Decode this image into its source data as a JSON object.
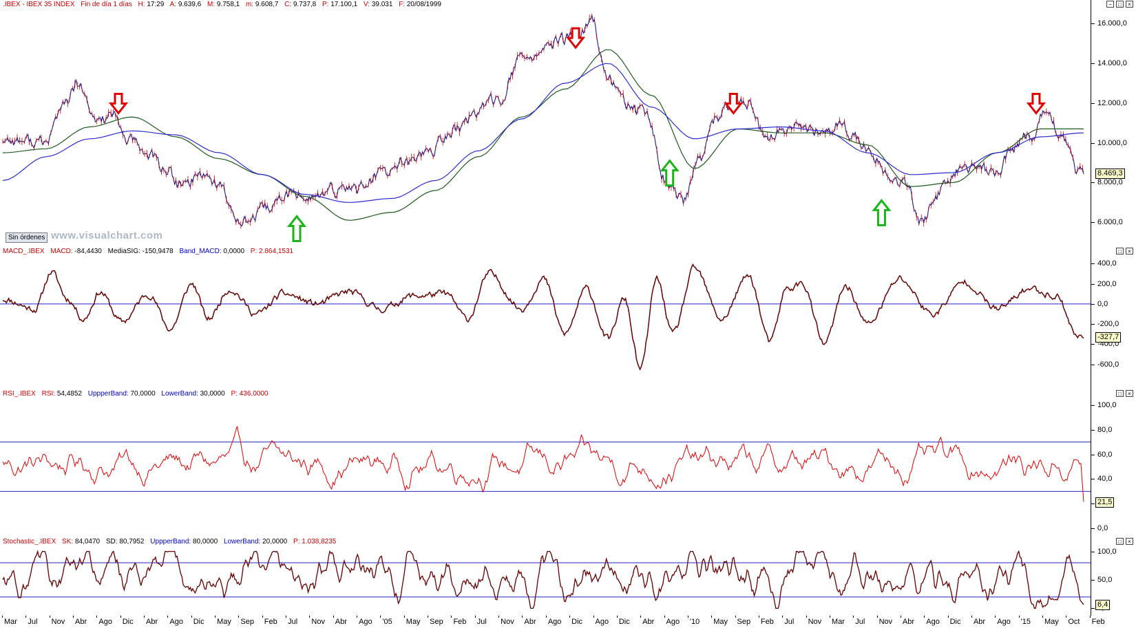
{
  "chart_data": [
    {
      "type": "line",
      "header": {
        "instrument": ".IBEX - IBEX 35 INDEX",
        "period": "Fin de día 1 días",
        "fields": [
          {
            "label": "H:",
            "value": "17:29"
          },
          {
            "label": "A:",
            "value": "9.639,6"
          },
          {
            "label": "M:",
            "value": "9.758,1"
          },
          {
            "label": "m:",
            "value": "9.608,7"
          },
          {
            "label": "C:",
            "value": "9.737,8"
          },
          {
            "label": "P:",
            "value": "17.100,1"
          },
          {
            "label": "V:",
            "value": "39.031"
          },
          {
            "label": "F:",
            "value": "20/08/1999"
          }
        ]
      },
      "yticks": [
        "16.000,0",
        "14.000,0",
        "12.000,0",
        "10.000,0",
        "8.000,0",
        "6.000,0"
      ],
      "ytick_values": [
        16000,
        14000,
        12000,
        10000,
        8000,
        6000
      ],
      "ylim": [
        4900,
        16700
      ],
      "last_value": "8.469,3",
      "series": [
        {
          "name": "",
          "color": "#1a1a8c",
          "role": "price",
          "x": [
            0,
            0.02,
            0.04,
            0.055,
            0.07,
            0.085,
            0.1,
            0.115,
            0.135,
            0.15,
            0.165,
            0.185,
            0.2,
            0.215,
            0.23,
            0.245,
            0.265,
            0.29,
            0.31,
            0.33,
            0.35,
            0.37,
            0.395,
            0.42,
            0.44,
            0.46,
            0.48,
            0.5,
            0.515,
            0.53,
            0.545,
            0.56,
            0.575,
            0.595,
            0.615,
            0.63,
            0.645,
            0.66,
            0.675,
            0.69,
            0.705,
            0.72,
            0.735,
            0.755,
            0.775,
            0.79,
            0.805,
            0.82,
            0.835,
            0.85,
            0.865,
            0.885,
            0.905,
            0.92,
            0.935,
            0.95,
            0.965,
            0.98,
            0.995
          ],
          "y": [
            10200,
            10100,
            10000,
            11800,
            12900,
            11100,
            11400,
            10200,
            9400,
            8700,
            7800,
            8500,
            7900,
            6300,
            6100,
            6700,
            7400,
            7300,
            7600,
            7800,
            8400,
            8900,
            9600,
            10700,
            11600,
            12300,
            14200,
            14600,
            15100,
            15300,
            16100,
            13200,
            12100,
            11300,
            8000,
            7000,
            9200,
            11200,
            12000,
            11900,
            10200,
            10500,
            10800,
            10500,
            10900,
            10300,
            9300,
            8400,
            7900,
            6000,
            7400,
            8500,
            8700,
            8500,
            9800,
            10400,
            11500,
            10200,
            8500
          ]
        },
        {
          "name": "",
          "color": "#1e5a1e",
          "role": "ma-fast",
          "x": [
            0,
            0.04,
            0.08,
            0.12,
            0.16,
            0.2,
            0.24,
            0.28,
            0.32,
            0.36,
            0.4,
            0.44,
            0.48,
            0.52,
            0.56,
            0.6,
            0.64,
            0.68,
            0.72,
            0.76,
            0.8,
            0.84,
            0.88,
            0.92,
            0.96,
            1.0
          ],
          "y": [
            9500,
            9700,
            10800,
            11300,
            10300,
            9200,
            8400,
            7300,
            6100,
            6500,
            7600,
            9300,
            11300,
            12700,
            14700,
            12400,
            8700,
            10700,
            10500,
            10500,
            9900,
            7800,
            8000,
            9500,
            10700,
            10700
          ]
        },
        {
          "name": "",
          "color": "#2b2bd4",
          "role": "ma-slow",
          "x": [
            0,
            0.04,
            0.08,
            0.12,
            0.16,
            0.2,
            0.24,
            0.28,
            0.32,
            0.36,
            0.4,
            0.44,
            0.48,
            0.52,
            0.56,
            0.6,
            0.64,
            0.68,
            0.72,
            0.76,
            0.8,
            0.84,
            0.88,
            0.92,
            0.96,
            1.0
          ],
          "y": [
            8100,
            9300,
            10200,
            10600,
            10400,
            9500,
            8400,
            7400,
            7000,
            7200,
            8100,
            9600,
            11200,
            13000,
            14000,
            11800,
            10200,
            10700,
            10800,
            10600,
            9500,
            8400,
            8500,
            9500,
            10300,
            10500
          ]
        }
      ],
      "markers": [
        {
          "direction": "down",
          "color": "#e00000",
          "x": 0.107,
          "y": 11700
        },
        {
          "direction": "up",
          "color": "#18b418",
          "x": 0.272,
          "y": 6300
        },
        {
          "direction": "down",
          "color": "#e00000",
          "x": 0.53,
          "y": 15000
        },
        {
          "direction": "up",
          "color": "#18b418",
          "x": 0.617,
          "y": 9100
        },
        {
          "direction": "down",
          "color": "#e00000",
          "x": 0.676,
          "y": 11700
        },
        {
          "direction": "up",
          "color": "#18b418",
          "x": 0.813,
          "y": 7100
        },
        {
          "direction": "down",
          "color": "#e00000",
          "x": 0.956,
          "y": 11700
        }
      ]
    },
    {
      "type": "line",
      "header": {
        "name": "MACD_.IBEX",
        "fields": [
          {
            "label": "MACD:",
            "value": "-84,4430"
          },
          {
            "label": "MediaSIG:",
            "value": "-150,9478"
          },
          {
            "label": "Band_MACD:",
            "value": "0,0000"
          },
          {
            "label": "P:",
            "value": "2.864,1531"
          }
        ]
      },
      "yticks": [
        "400,0",
        "200,0",
        "0,0",
        "-200,0",
        "-400,0",
        "-600,0"
      ],
      "ytick_values": [
        400,
        200,
        0,
        -200,
        -400,
        -600
      ],
      "ylim": [
        -820,
        470
      ],
      "last_value": "-327,7",
      "reference_lines": [
        0
      ],
      "series": [
        {
          "name": "",
          "color": "#b00000",
          "x": [
            0,
            0.03,
            0.045,
            0.06,
            0.075,
            0.09,
            0.11,
            0.135,
            0.155,
            0.175,
            0.19,
            0.21,
            0.235,
            0.26,
            0.29,
            0.32,
            0.35,
            0.38,
            0.41,
            0.43,
            0.45,
            0.48,
            0.5,
            0.52,
            0.54,
            0.56,
            0.575,
            0.59,
            0.605,
            0.62,
            0.64,
            0.665,
            0.69,
            0.71,
            0.725,
            0.74,
            0.76,
            0.78,
            0.8,
            0.83,
            0.86,
            0.89,
            0.92,
            0.95,
            0.975,
            0.995
          ],
          "y": [
            50,
            -50,
            320,
            50,
            -150,
            120,
            -180,
            100,
            -250,
            200,
            -150,
            150,
            -100,
            100,
            0,
            120,
            -50,
            80,
            100,
            -150,
            300,
            -50,
            250,
            -300,
            150,
            -350,
            50,
            -650,
            250,
            -300,
            350,
            -150,
            280,
            -380,
            150,
            200,
            -400,
            180,
            -200,
            250,
            -100,
            220,
            -50,
            150,
            80,
            -330
          ]
        }
      ]
    },
    {
      "type": "line",
      "header": {
        "name": "RSI_.IBEX",
        "fields": [
          {
            "label": "RSI:",
            "value": "54,4852"
          },
          {
            "label": "UppperBand:",
            "value": "70,0000"
          },
          {
            "label": "LowerBand:",
            "value": "30,0000"
          },
          {
            "label": "P:",
            "value": "436,0000"
          }
        ]
      },
      "yticks": [
        "100,0",
        "80,0",
        "60,0",
        "40,0",
        "20,0",
        "0,0"
      ],
      "ytick_values": [
        100,
        80,
        60,
        40,
        20,
        0
      ],
      "ylim": [
        -5,
        105
      ],
      "last_value": "21,5",
      "reference_lines": [
        70,
        30
      ],
      "series": [
        {
          "name": "",
          "color": "#e00000",
          "role": "rsi",
          "seed": 1234,
          "count": 780,
          "mean": 52,
          "amp": 20,
          "y_last": 21.5
        }
      ]
    },
    {
      "type": "line",
      "header": {
        "name": "Stochastic_.IBEX",
        "fields": [
          {
            "label": "SK:",
            "value": "84,0470"
          },
          {
            "label": "SD:",
            "value": "80,7952"
          },
          {
            "label": "UppperBand:",
            "value": "80,0000"
          },
          {
            "label": "LowerBand:",
            "value": "20,0000"
          },
          {
            "label": "P:",
            "value": "1.038,8235"
          }
        ]
      },
      "yticks": [
        "100,0",
        "50,0",
        "0,0"
      ],
      "ytick_values": [
        100,
        50,
        0
      ],
      "ylim": [
        -8,
        108
      ],
      "last_value": "6,4",
      "reference_lines": [
        80,
        20
      ],
      "series": [
        {
          "name": "",
          "color": "#b00000",
          "role": "stoch",
          "seed": 98765,
          "count": 900,
          "mean": 50,
          "amp": 50,
          "y_last": 6.4
        }
      ]
    }
  ],
  "x_axis": {
    "labels": [
      "Mar",
      "Jul",
      "Nov",
      "Abr",
      "Ago",
      "Dic",
      "Abr",
      "Ago",
      "Dic",
      "May",
      "Sep",
      "Feb",
      "Jul",
      "Nov",
      "Abr",
      "Ago",
      "'05",
      "May",
      "Sep",
      "Feb",
      "Jul",
      "Nov",
      "Abr",
      "Ago",
      "Dic",
      "Ago",
      "Dic",
      "Abr",
      "Ago",
      "'10",
      "May",
      "Sep",
      "Feb",
      "Jul",
      "Nov",
      "Mar",
      "Jul",
      "Nov",
      "Abr",
      "Ago",
      "Dic",
      "Abr",
      "Ago",
      "'15",
      "May",
      "Oct",
      "Feb"
    ]
  },
  "ui": {
    "order_button": "Sin órdenes",
    "watermark": "www.visualchart.com",
    "win_minimize": "−",
    "win_restore": "□",
    "win_close": "×"
  }
}
